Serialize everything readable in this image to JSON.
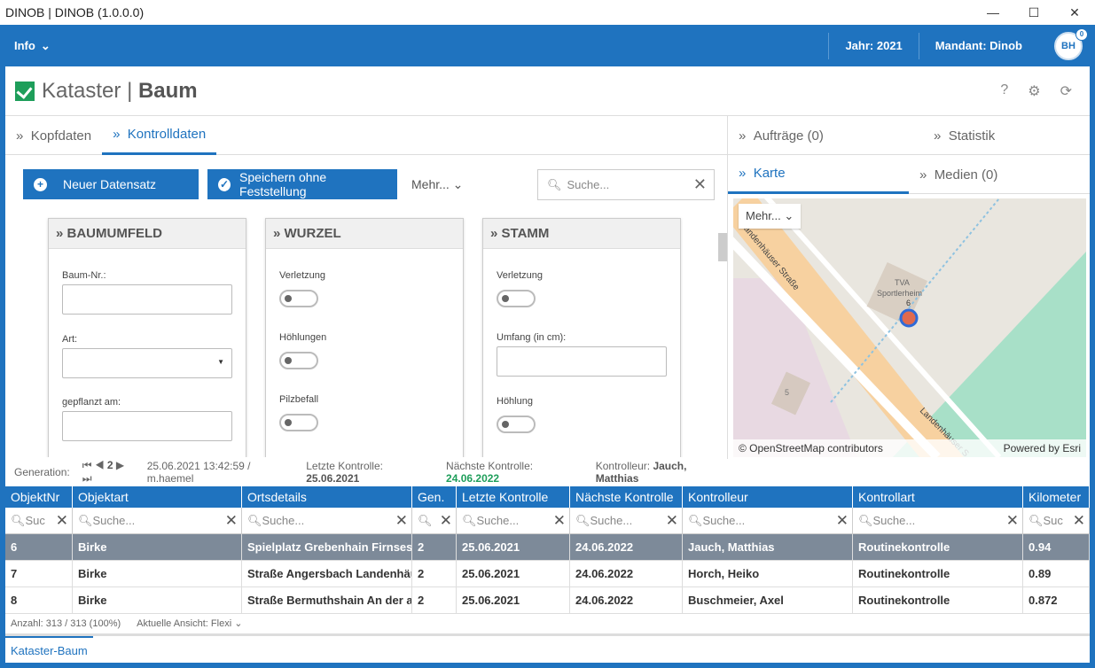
{
  "window": {
    "title": "DINOB | DINOB (1.0.0.0)",
    "min": "—",
    "max": "☐",
    "close": "✕"
  },
  "nav": {
    "info": "Info",
    "jahr": "Jahr: 2021",
    "mandant": "Mandant: Dinob",
    "avatar": "BH",
    "badge": "0"
  },
  "header": {
    "title_a": "Kataster",
    "sep": "|",
    "title_b": "Baum",
    "help": "?",
    "settings": "⚙",
    "refresh": "⟳"
  },
  "tabs": [
    {
      "label": "Kopfdaten"
    },
    {
      "label": "Kontrolldaten"
    }
  ],
  "toolbar": {
    "new": "Neuer Datensatz",
    "save": "Speichern ohne Feststellung",
    "mehr": "Mehr...",
    "search_placeholder": "Suche..."
  },
  "panels": {
    "baumumfeld": {
      "title": "» BAUMUMFELD",
      "baum_nr": "Baum-Nr.:",
      "art": "Art:",
      "gepflanzt": "gepflanzt am:"
    },
    "wurzel": {
      "title": "» WURZEL",
      "verletzung": "Verletzung",
      "hoehlungen": "Höhlungen",
      "pilzbefall": "Pilzbefall"
    },
    "stamm": {
      "title": "» STAMM",
      "verletzung": "Verletzung",
      "umfang": "Umfang (in cm):",
      "hoehlung": "Höhlung"
    }
  },
  "right": {
    "tabs_top": [
      "Aufträge (0)",
      "Statistik"
    ],
    "tabs_bottom": [
      "Karte",
      "Medien (0)"
    ],
    "map": {
      "mehr": "Mehr...",
      "street1": "Landenhäuser Straße",
      "street2": "Landenhäuser S",
      "poi_a": "TVA",
      "poi_b": "Sportlerheim",
      "marker": "6",
      "house": "5",
      "attr_left": "© OpenStreetMap contributors",
      "attr_right": "Powered by Esri"
    }
  },
  "status": {
    "gen_label": "Generation:",
    "gen": "2",
    "timestamp": "25.06.2021 13:42:59 / m.haemel",
    "letzte_label": "Letzte Kontrolle:",
    "letzte": "25.06.2021",
    "naechste_label": "Nächste Kontrolle:",
    "naechste": "24.06.2022",
    "kontrolleur_label": "Kontrolleur:",
    "kontrolleur": "Jauch, Matthias"
  },
  "grid": {
    "columns": [
      "ObjektNr",
      "Objektart",
      "Ortsdetails",
      "Gen.",
      "Letzte Kontrolle",
      "Nächste Kontrolle",
      "Kontrolleur",
      "Kontrollart",
      "Kilometer"
    ],
    "filters": [
      "Suc",
      "Suche...",
      "Suche...",
      "",
      "Suche...",
      "Suche...",
      "Suche...",
      "Suche...",
      "Suc"
    ],
    "rows": [
      [
        "6",
        "Birke",
        "Spielplatz Grebenhain  Firnses",
        "2",
        "25.06.2021",
        "24.06.2022",
        "Jauch, Matthias",
        "Routinekontrolle",
        "0.94"
      ],
      [
        "7",
        "Birke",
        "Straße Angersbach  Landenhäu",
        "2",
        "25.06.2021",
        "24.06.2022",
        "Horch, Heiko",
        "Routinekontrolle",
        "0.89"
      ],
      [
        "8",
        "Birke",
        "Straße Bermuthshain  An der al",
        "2",
        "25.06.2021",
        "24.06.2022",
        "Buschmeier, Axel",
        "Routinekontrolle",
        "0.872"
      ]
    ],
    "footer": {
      "count": "Anzahl: 313 / 313 (100%)",
      "view": "Aktuelle Ansicht: Flexi"
    }
  },
  "bottom_tab": "Kataster-Baum"
}
